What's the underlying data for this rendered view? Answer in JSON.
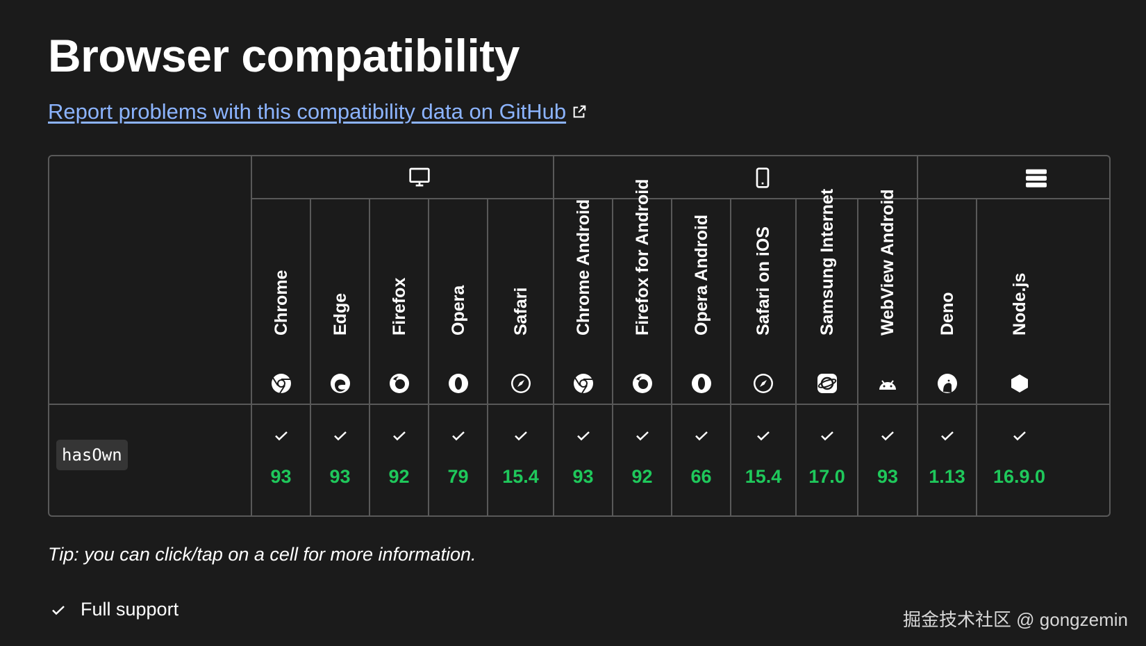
{
  "page": {
    "title": "Browser compatibility",
    "report_link": "Report problems with this compatibility data on GitHub",
    "tip": "Tip: you can click/tap on a cell for more information.",
    "legend_full_support": "Full support",
    "watermark": "掘金技术社区 @ gongzemin"
  },
  "groups": [
    {
      "name": "desktop",
      "icon": "desktop-icon"
    },
    {
      "name": "mobile",
      "icon": "mobile-icon"
    },
    {
      "name": "server",
      "icon": "server-icon"
    }
  ],
  "feature": {
    "name": "hasOwn"
  },
  "browsers": [
    {
      "name": "Chrome",
      "version": "93",
      "icon": "chrome-icon"
    },
    {
      "name": "Edge",
      "version": "93",
      "icon": "edge-icon"
    },
    {
      "name": "Firefox",
      "version": "92",
      "icon": "firefox-icon"
    },
    {
      "name": "Opera",
      "version": "79",
      "icon": "opera-icon"
    },
    {
      "name": "Safari",
      "version": "15.4",
      "icon": "safari-icon"
    },
    {
      "name": "Chrome Android",
      "version": "93",
      "icon": "chrome-icon"
    },
    {
      "name": "Firefox for Android",
      "version": "92",
      "icon": "firefox-icon"
    },
    {
      "name": "Opera Android",
      "version": "66",
      "icon": "opera-icon"
    },
    {
      "name": "Safari on iOS",
      "version": "15.4",
      "icon": "safari-icon"
    },
    {
      "name": "Samsung Internet",
      "version": "17.0",
      "icon": "samsung-internet-icon"
    },
    {
      "name": "WebView Android",
      "version": "93",
      "icon": "android-icon"
    },
    {
      "name": "Deno",
      "version": "1.13",
      "icon": "deno-icon"
    },
    {
      "name": "Node.js",
      "version": "16.9.0",
      "icon": "nodejs-icon"
    }
  ],
  "colors": {
    "background": "#1b1b1b",
    "link": "#8cb4ff",
    "supported": "#1fc85b",
    "border": "#595959"
  }
}
